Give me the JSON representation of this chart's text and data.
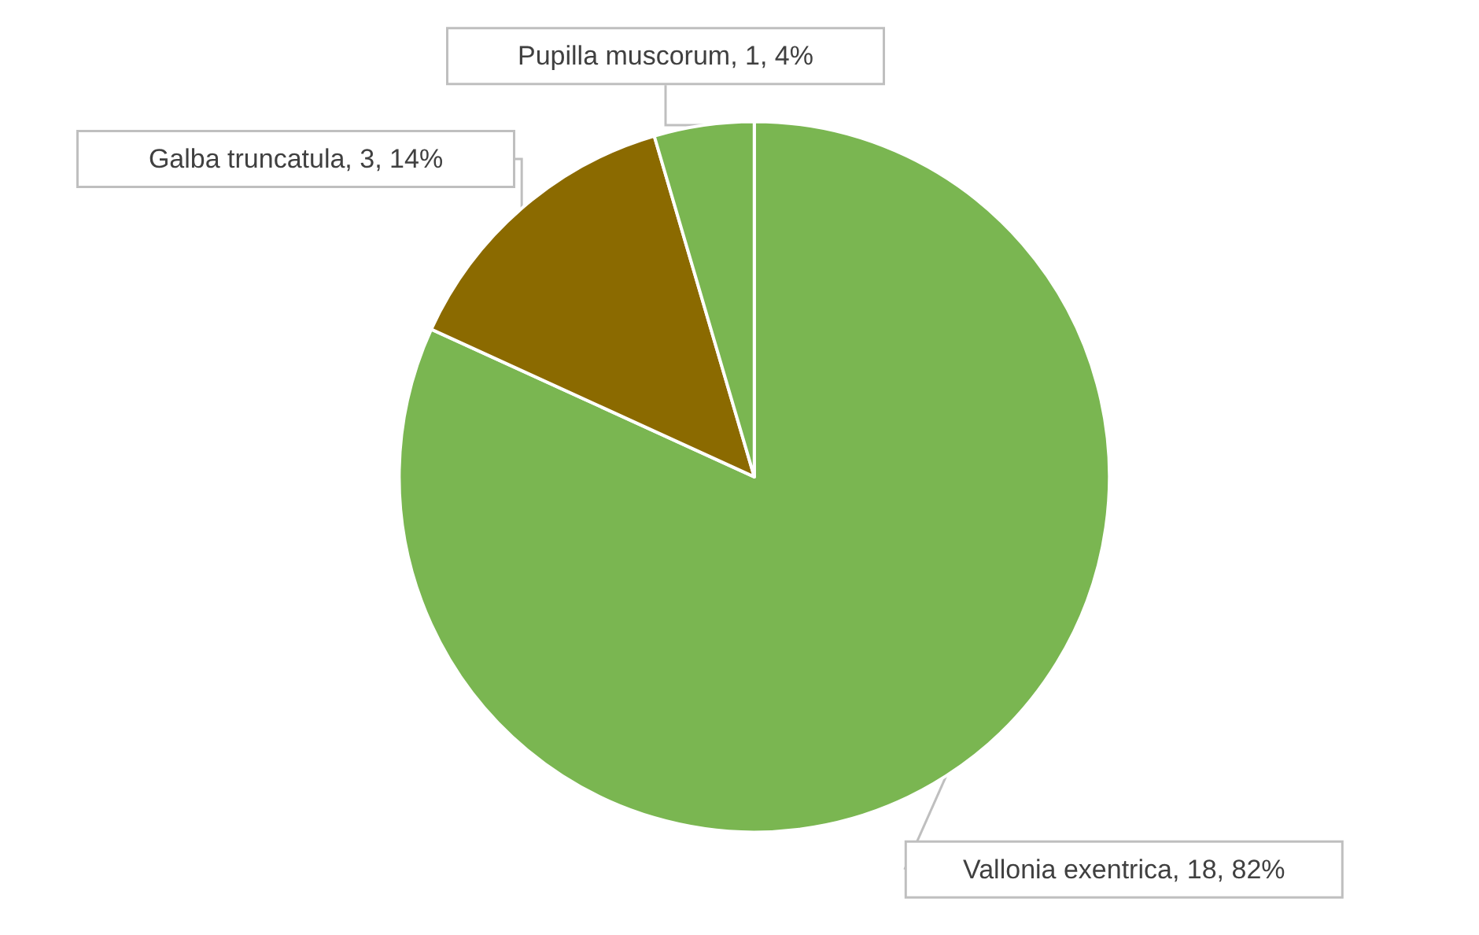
{
  "chart_data": {
    "type": "pie",
    "categories": [
      "Vallonia exentrica",
      "Galba truncatula",
      "Pupilla muscorum"
    ],
    "values": [
      18,
      3,
      1
    ],
    "value_labels": [
      "18, 82%",
      "3, 14%",
      "1, 4%"
    ],
    "colors": [
      "#7ab651",
      "#8b6a00",
      "#7ab651"
    ]
  }
}
